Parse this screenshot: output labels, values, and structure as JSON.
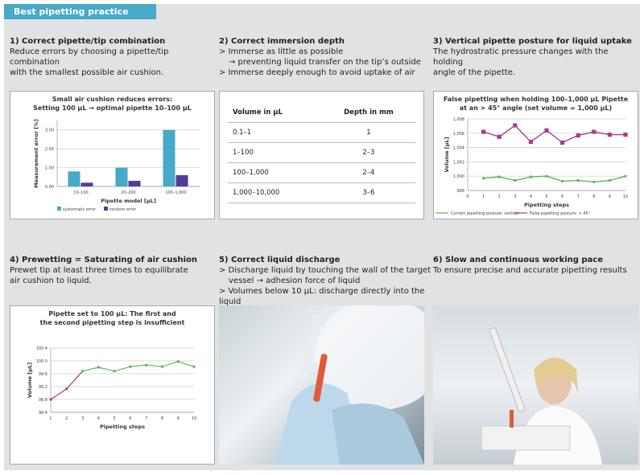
{
  "header": {
    "title": "Best pipetting practice"
  },
  "sections": [
    {
      "title": "1) Correct pipette/tip combination",
      "lines": [
        "Reduce errors by choosing a pipette/tip combination",
        "with the smallest possible air cushion."
      ]
    },
    {
      "title": "2) Correct immersion depth",
      "lines": [
        "> Immerse as little as possible",
        "→ preventing liquid transfer on the tip’s outside",
        "> Immerse deeply enough to avoid uptake of air"
      ]
    },
    {
      "title": "3) Vertical pipette posture for liquid uptake",
      "lines": [
        "The hydrostratic pressure changes with the holding",
        "angle of the pipette."
      ]
    },
    {
      "title": "4) Prewetting = Saturating of air cushion",
      "lines": [
        "Prewet tip at least three times to equilibrate",
        "air cushion to liquid."
      ]
    },
    {
      "title": "5) Correct liquid discharge",
      "lines": [
        "> Discharge liquid by touching the wall of the target",
        "vessel → adhesion force of liquid",
        "> Volumes below 10 µL: discharge directly into the liquid"
      ]
    },
    {
      "title": "6) Slow and continuous working pace",
      "lines": [
        "To ensure precise and accurate pipetting results"
      ]
    }
  ],
  "table": {
    "headers": [
      "Volume in µL",
      "Depth in mm"
    ],
    "rows": [
      [
        "0.1–1",
        "1"
      ],
      [
        "1–100",
        "2–3"
      ],
      [
        "100–1,000",
        "2–4"
      ],
      [
        "1,000–10,000",
        "3–6"
      ]
    ]
  },
  "photos": [
    {
      "subject": "gloved hands pipetting red liquid into tube"
    },
    {
      "subject": "scientist using pipette at bench"
    }
  ],
  "colors": {
    "accent": "#48a9c9",
    "cyan": "#48a9c9",
    "purple": "#553c98",
    "magenta": "#a33d8f",
    "green": "#5bb85b"
  },
  "chart_data": [
    {
      "type": "bar",
      "title": [
        "Small air cushion reduces errors:",
        "Setting 100 µL → optimal pipette 10–100 µL"
      ],
      "xlabel": "Pipette model [µL]",
      "ylabel": "Measurement error [%]",
      "categories": [
        "10–100",
        "20–200",
        "100–1,000"
      ],
      "ylim": [
        0,
        3.5
      ],
      "yticks": [
        "0.00",
        "1.00",
        "2.00",
        "3.00"
      ],
      "series": [
        {
          "name": "systematic error",
          "values": [
            0.8,
            1.0,
            3.0
          ],
          "color": "#48a9c9"
        },
        {
          "name": "random error",
          "values": [
            0.2,
            0.3,
            0.6
          ],
          "color": "#553c98"
        }
      ],
      "grid": true,
      "legend": "bottom"
    },
    {
      "type": "line",
      "title": [
        "False pipetting when holding 100–1,000 µL Pipette",
        "at an > 45° angle (set volume = 1,000 µL)"
      ],
      "xlabel": "Pipetting steps",
      "ylabel": "Volume [µL]",
      "x": [
        1,
        2,
        3,
        4,
        5,
        6,
        7,
        8,
        9,
        10
      ],
      "xlim": [
        0,
        10
      ],
      "ylim": [
        998,
        1008
      ],
      "xticks": [
        "0",
        "1",
        "2",
        "3",
        "4",
        "5",
        "6",
        "7",
        "8",
        "9",
        "10"
      ],
      "yticks": [
        "998",
        "1,000",
        "1,002",
        "1,004",
        "1,006",
        "1,008"
      ],
      "series": [
        {
          "name": "Correct pipetting posture: vertical",
          "values": [
            999.7,
            999.9,
            999.4,
            999.9,
            1000,
            999.3,
            999.4,
            999.2,
            999.4,
            1000
          ],
          "color": "#5bb85b"
        },
        {
          "name": "False pipetting posture: > 45°",
          "values": [
            1006.2,
            1005.5,
            1007.1,
            1004.8,
            1006.4,
            1004.7,
            1005.7,
            1006.2,
            1005.8,
            1005.8
          ],
          "color": "#a33d8f"
        }
      ],
      "grid": true,
      "legend": "bottom"
    },
    {
      "type": "line",
      "title": [
        "Pipette set to 100 µL: The first and",
        "the second pipetting step is insufficient"
      ],
      "xlabel": "Pipetting steps",
      "ylabel": "Volume [µL]",
      "x": [
        1,
        2,
        3,
        4,
        5,
        6,
        7,
        8,
        9,
        10
      ],
      "xlim": [
        1,
        10
      ],
      "ylim": [
        98.4,
        100.4
      ],
      "xticks": [
        "1",
        "2",
        "3",
        "4",
        "5",
        "6",
        "7",
        "8",
        "9",
        "10"
      ],
      "yticks": [
        "98.4",
        "98.8",
        "99.2",
        "99.6",
        "100.0",
        "100.4"
      ],
      "series": [
        {
          "values": [
            98.8,
            99.13,
            99.68,
            99.8,
            99.68,
            99.82,
            99.87,
            99.82,
            99.98,
            99.82
          ],
          "color": "#5bb85b",
          "first_segment_color": "#a33d8f"
        }
      ],
      "grid": true
    }
  ]
}
